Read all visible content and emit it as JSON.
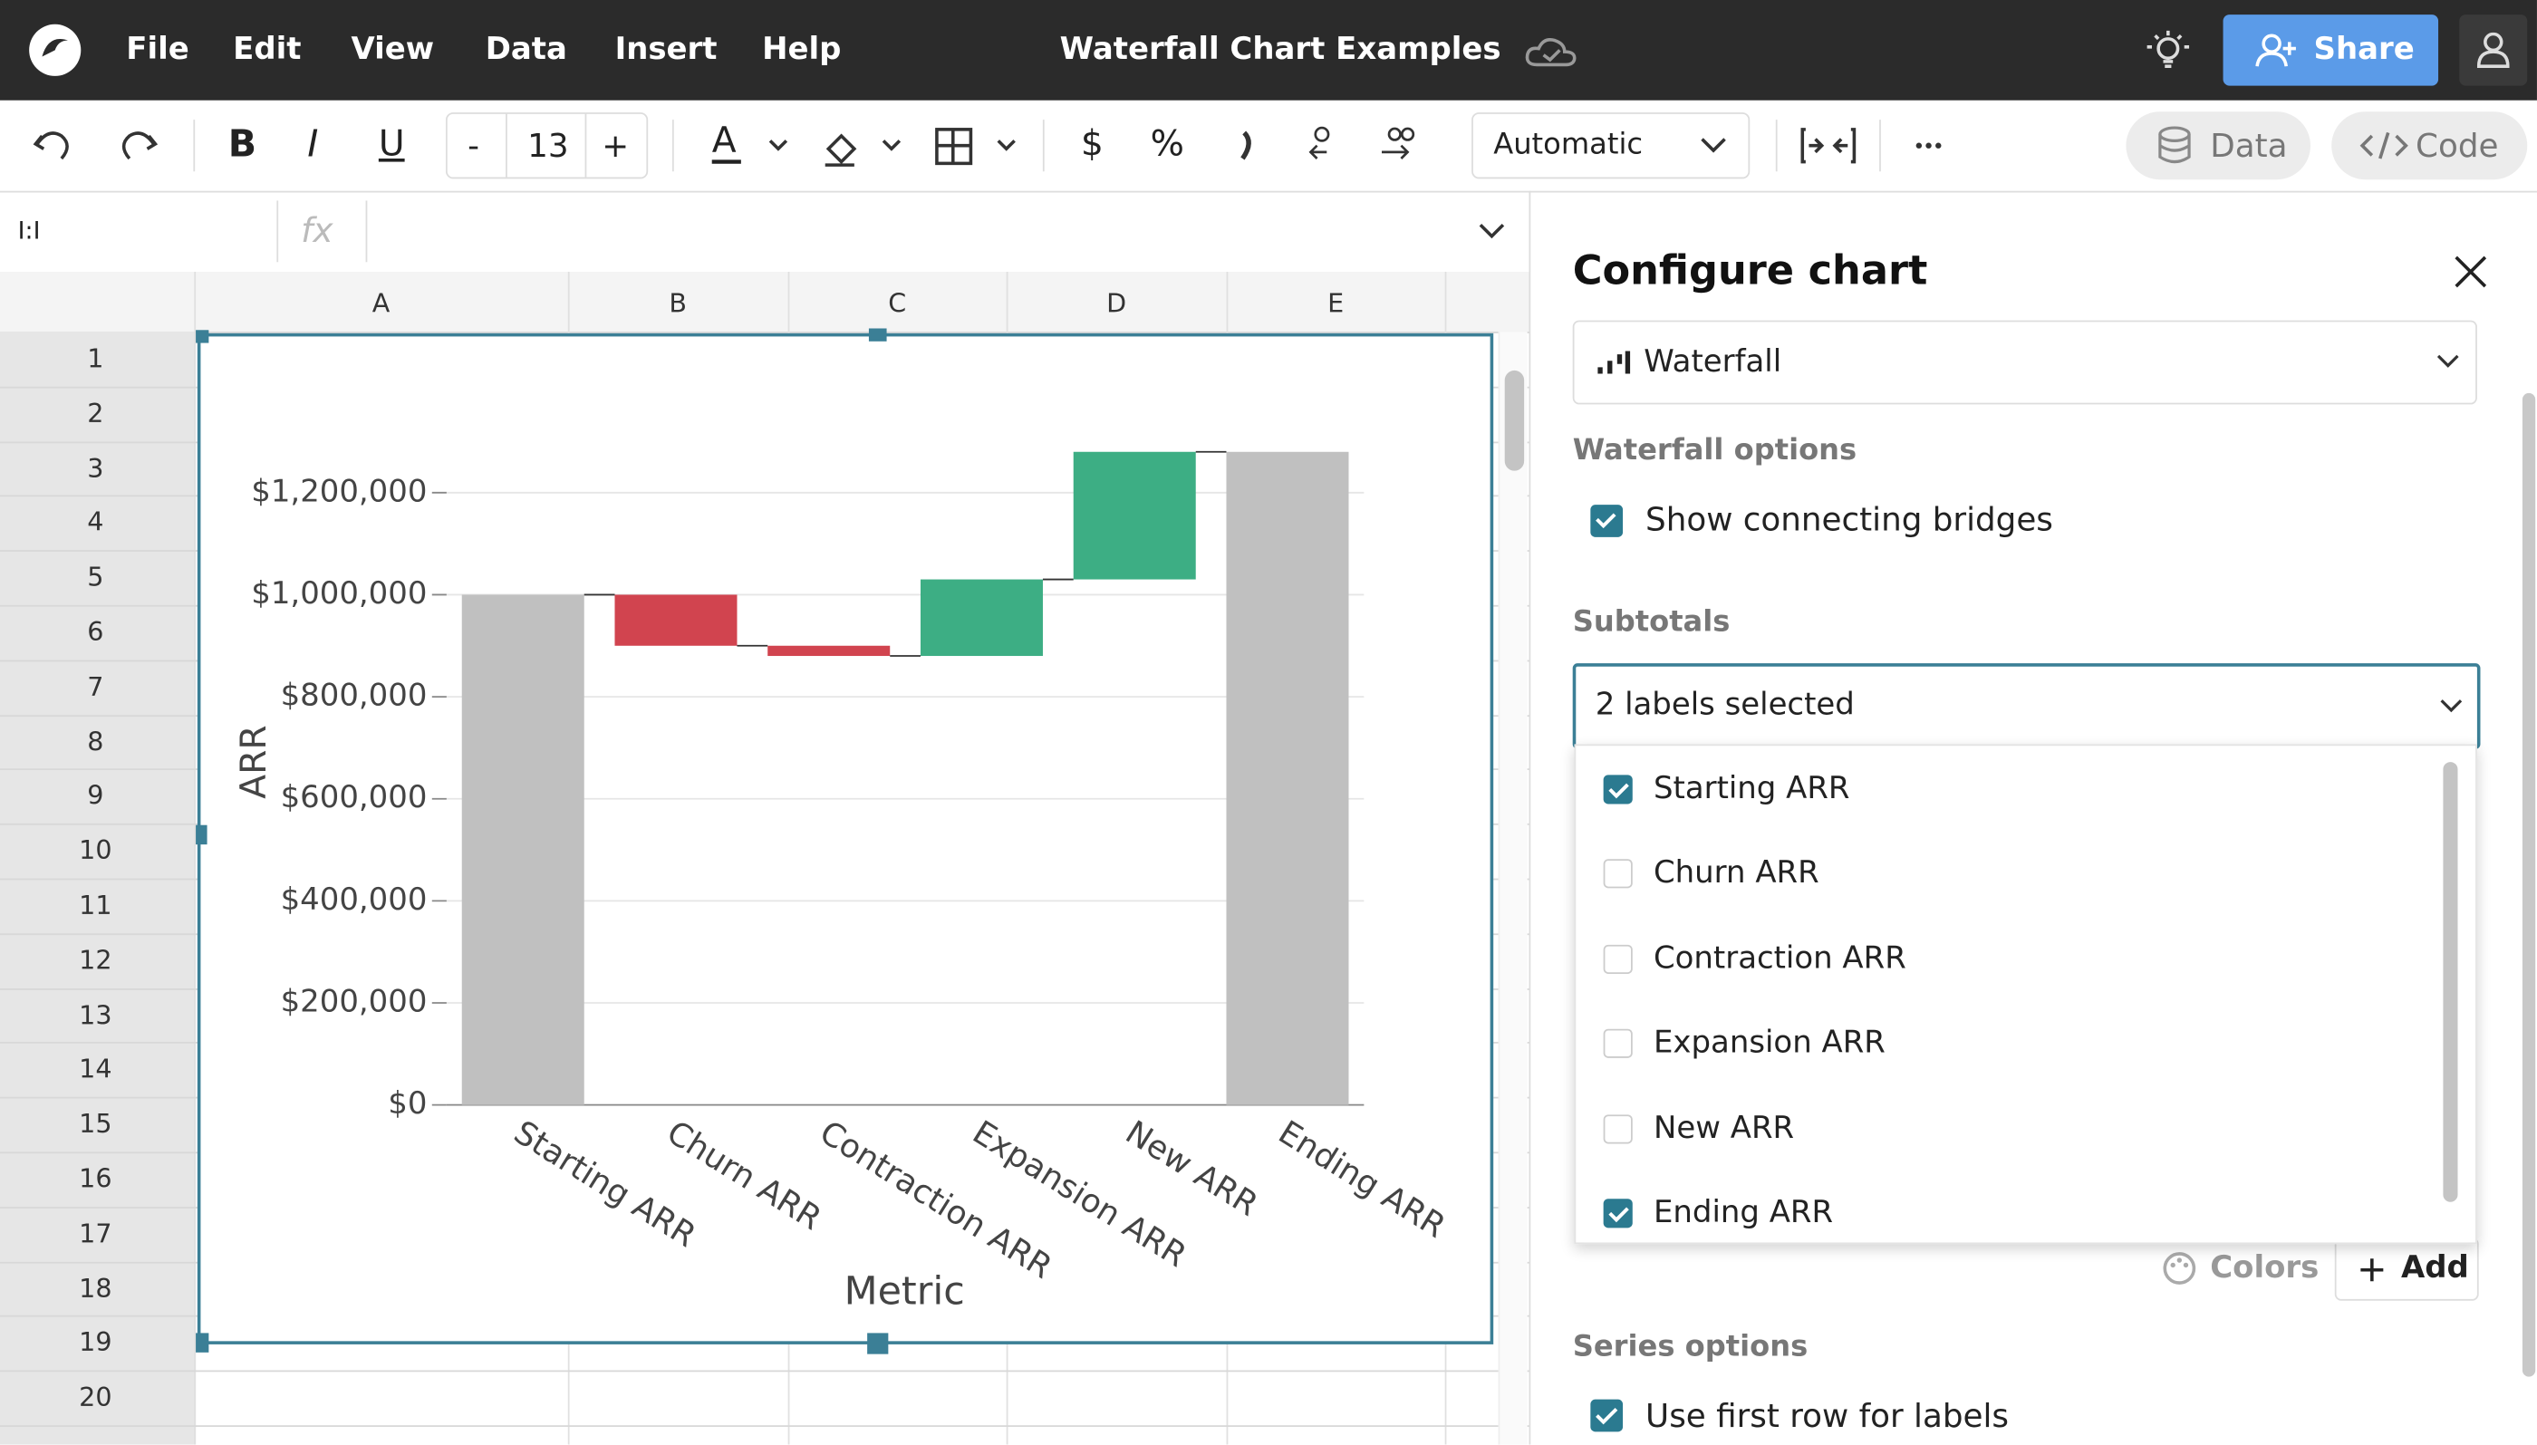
{
  "app": {
    "menu": [
      "File",
      "Edit",
      "View",
      "Data",
      "Insert",
      "Help"
    ],
    "title": "Waterfall Chart Examples",
    "share": "Share"
  },
  "toolbar": {
    "bold": "B",
    "italic": "I",
    "underline": "U",
    "decrease": "-",
    "font_size": "13",
    "increase": "+",
    "currency": "$",
    "percent": "%",
    "format": "Automatic",
    "data": "Data",
    "code": "Code"
  },
  "formula_bar": {
    "cell": "I:I",
    "fx": "fx"
  },
  "sheet": {
    "columns": [
      "A",
      "B",
      "C",
      "D",
      "E"
    ],
    "rows": [
      "1",
      "2",
      "3",
      "4",
      "5",
      "6",
      "7",
      "8",
      "9",
      "10",
      "11",
      "12",
      "13",
      "14",
      "15",
      "16",
      "17",
      "18",
      "19",
      "20"
    ]
  },
  "chart_data": {
    "type": "waterfall",
    "x_label": "Metric",
    "y_label": "ARR",
    "categories": [
      "Starting ARR",
      "Churn ARR",
      "Contraction ARR",
      "Expansion ARR",
      "New ARR",
      "Ending ARR"
    ],
    "values": [
      1000000,
      -100000,
      -20000,
      150000,
      250000,
      1280000
    ],
    "subtotals": [
      true,
      false,
      false,
      false,
      false,
      true
    ],
    "bridges": true,
    "colors": {
      "increase": "#3dae84",
      "decrease": "#d1444f",
      "total": "#c0c0c0"
    },
    "ylim": [
      0,
      1300000
    ],
    "yticks": [
      {
        "value": 0,
        "label": "$0"
      },
      {
        "value": 200000,
        "label": "$200,000"
      },
      {
        "value": 400000,
        "label": "$400,000"
      },
      {
        "value": 600000,
        "label": "$600,000"
      },
      {
        "value": 800000,
        "label": "$800,000"
      },
      {
        "value": 1000000,
        "label": "$1,000,000"
      },
      {
        "value": 1200000,
        "label": "$1,200,000"
      }
    ],
    "grid": true
  },
  "panel": {
    "title": "Configure chart",
    "chart_type": "Waterfall",
    "waterfall_options": "Waterfall options",
    "show_bridges": "Show connecting bridges",
    "subtotals": "Subtotals",
    "subtotals_select": "2 labels selected",
    "colors": "Colors",
    "add": "Add",
    "series_options": "Series options",
    "first_row_labels": "Use first row for labels"
  }
}
